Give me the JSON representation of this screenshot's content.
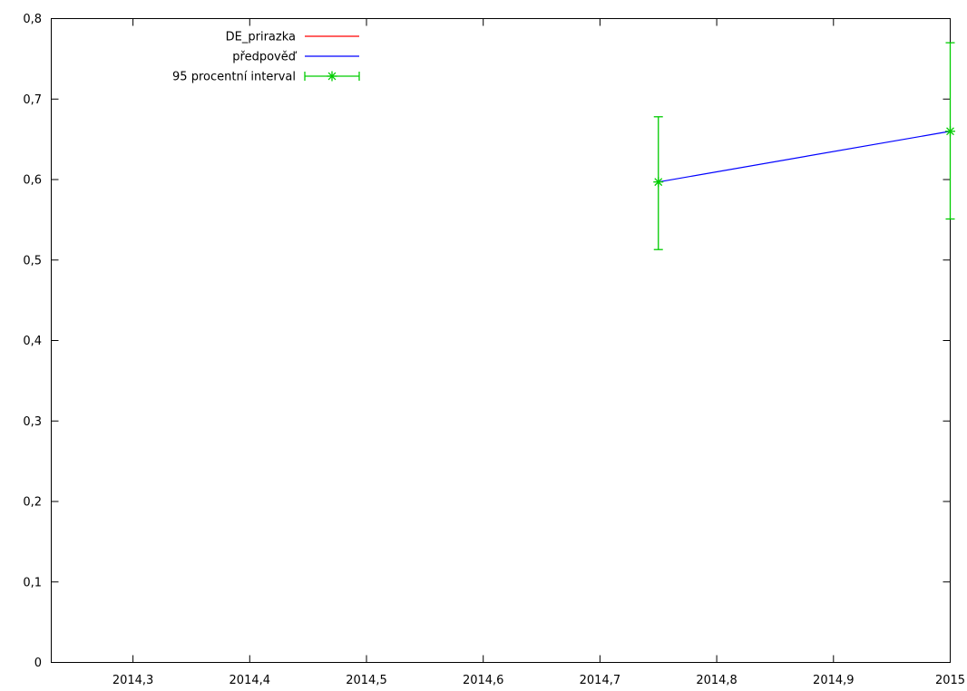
{
  "chart_data": {
    "type": "line",
    "title": "",
    "xlabel": "",
    "ylabel": "",
    "xlim": [
      2014.23,
      2015.0
    ],
    "ylim": [
      0,
      0.8
    ],
    "grid": false,
    "legend_position": "top-left",
    "x_ticks": [
      2014.3,
      2014.4,
      2014.5,
      2014.6,
      2014.7,
      2014.8,
      2014.9,
      2015
    ],
    "x_tick_labels": [
      "2014,3",
      "2014,4",
      "2014,5",
      "2014,6",
      "2014,7",
      "2014,8",
      "2014,9",
      "2015"
    ],
    "y_ticks": [
      0,
      0.1,
      0.2,
      0.3,
      0.4,
      0.5,
      0.6,
      0.7,
      0.8
    ],
    "y_tick_labels": [
      "0",
      "0,1",
      "0,2",
      "0,3",
      "0,4",
      "0,5",
      "0,6",
      "0,7",
      "0,8"
    ],
    "series": [
      {
        "name": "DE_prirazka",
        "color": "#ff0000",
        "x": [],
        "y": []
      },
      {
        "name": "předpověď",
        "color": "#0000ff",
        "x": [
          2014.75,
          2015.0
        ],
        "y": [
          0.597,
          0.66
        ]
      }
    ],
    "error_bars": {
      "name": "95 procentní interval",
      "color": "#00cc00",
      "points": [
        {
          "x": 2014.75,
          "y": 0.597,
          "low": 0.513,
          "high": 0.678
        },
        {
          "x": 2015.0,
          "y": 0.66,
          "low": 0.551,
          "high": 0.77
        }
      ]
    }
  }
}
